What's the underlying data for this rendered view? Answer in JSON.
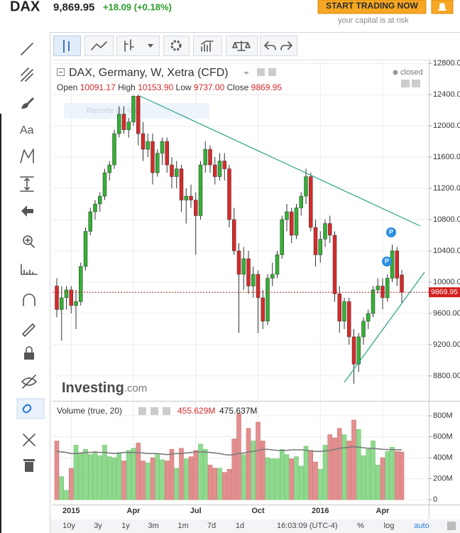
{
  "header": {
    "symbol": "DAX",
    "price": "9,869.95",
    "change": "+18.09 (+0.18%)",
    "button": "START TRADING NOW",
    "risk": "your capital is at risk"
  },
  "legend": {
    "title": "DAX, Germany, W, Xetra (CFD)",
    "status": "closed",
    "open_label": "Open",
    "open": "10091.17",
    "high_label": "High",
    "high": "10153.90",
    "low_label": "Low",
    "low": "9737.00",
    "close_label": "Close",
    "close": "9869.95",
    "tooltip": "Recorte de tela",
    "watermark": "Investing",
    "watermark_suffix": ".com"
  },
  "chart_data": [
    {
      "type": "candlestick",
      "categories": [
        null,
        null,
        null,
        "2015",
        null,
        null,
        null,
        null,
        null,
        null,
        null,
        null,
        null,
        null,
        null,
        null,
        "Apr",
        null,
        null,
        null,
        null,
        null,
        null,
        null,
        null,
        null,
        null,
        null,
        null,
        "Jul",
        null,
        null,
        null,
        null,
        null,
        null,
        null,
        null,
        null,
        null,
        null,
        null,
        "Oct",
        null,
        null,
        null,
        null,
        null,
        null,
        null,
        null,
        null,
        null,
        null,
        null,
        "2016",
        null,
        null,
        null,
        null,
        null,
        null,
        null,
        null,
        null,
        null,
        null,
        null,
        "Apr",
        null,
        null,
        null,
        null
      ],
      "open": [
        9950,
        9650,
        9800,
        9900,
        9700,
        9750,
        10200,
        10650,
        10900,
        11000,
        11100,
        11400,
        11500,
        11900,
        12150,
        11950,
        12050,
        12380,
        11900,
        11700,
        11800,
        11400,
        11650,
        11800,
        11500,
        11350,
        11450,
        11050,
        11100,
        11050,
        10850,
        11500,
        11700,
        11500,
        11350,
        11550,
        11450,
        10800,
        10400,
        10100,
        10300,
        9950,
        10100,
        9800,
        9500,
        10050,
        10100,
        10350,
        10800,
        10900,
        10600,
        10950,
        11100,
        11350,
        10700,
        10350,
        10550,
        10750,
        10600,
        9850,
        9500,
        9750,
        9300,
        8950,
        9300,
        9500,
        9600,
        9900,
        9950,
        9800,
        10050,
        10400,
        10091.17
      ],
      "high": [
        10050,
        9950,
        9950,
        9950,
        9900,
        10250,
        10700,
        10950,
        11050,
        11150,
        11450,
        11550,
        11950,
        12250,
        12250,
        12100,
        12390,
        12400,
        12050,
        11900,
        11900,
        11700,
        11850,
        11850,
        11600,
        11550,
        11500,
        11200,
        11250,
        11150,
        11550,
        11800,
        11750,
        11600,
        11650,
        11650,
        11500,
        10950,
        10500,
        10450,
        10400,
        10200,
        10150,
        9900,
        10100,
        10250,
        10400,
        10850,
        11000,
        10950,
        11000,
        11150,
        11450,
        11400,
        10800,
        10650,
        10800,
        10850,
        10650,
        9950,
        9800,
        9800,
        9400,
        9350,
        9550,
        9650,
        9950,
        10050,
        10050,
        10100,
        10480,
        10450,
        10153.9
      ],
      "low": [
        9550,
        9250,
        9650,
        9600,
        9400,
        9700,
        10150,
        10600,
        10800,
        10900,
        11050,
        11300,
        11450,
        11850,
        11900,
        11850,
        12000,
        11750,
        11550,
        11600,
        11250,
        11350,
        11500,
        11400,
        11200,
        11200,
        10900,
        10750,
        10950,
        10350,
        10800,
        11400,
        11400,
        11250,
        11300,
        11300,
        10700,
        10350,
        9350,
        9900,
        9850,
        9800,
        9350,
        9400,
        9450,
        9950,
        10050,
        10300,
        10650,
        10500,
        10550,
        10850,
        11000,
        10650,
        10200,
        10250,
        10450,
        10500,
        9750,
        9350,
        9400,
        9200,
        8700,
        8850,
        9200,
        9400,
        9550,
        9850,
        9650,
        9750,
        10000,
        9950,
        9737
      ],
      "close": [
        9650,
        9800,
        9900,
        9700,
        9750,
        10200,
        10650,
        10900,
        11000,
        11100,
        11400,
        11500,
        11900,
        12150,
        11950,
        12050,
        12380,
        11900,
        11700,
        11800,
        11400,
        11650,
        11800,
        11500,
        11350,
        11450,
        11050,
        11100,
        11050,
        10850,
        11500,
        11700,
        11500,
        11350,
        11550,
        11450,
        10800,
        10400,
        10100,
        10300,
        9950,
        10100,
        9800,
        9500,
        10050,
        10100,
        10350,
        10800,
        10900,
        10600,
        10950,
        11100,
        11350,
        10700,
        10350,
        10550,
        10750,
        10600,
        9850,
        9500,
        9750,
        9300,
        8950,
        9300,
        9500,
        9600,
        9900,
        9950,
        9800,
        10050,
        10400,
        10050,
        9869.95
      ],
      "up_color": "#35b035",
      "down_color": "#d62a2a",
      "ylim": [
        8490,
        12810
      ],
      "yticks": [
        {
          "value": 8800,
          "label": "8800.00"
        },
        {
          "value": 9200,
          "label": "9200.00"
        },
        {
          "value": 9600,
          "label": "9600.00"
        },
        {
          "value": 10000,
          "label": "10000.00"
        },
        {
          "value": 10400,
          "label": "10400.00"
        },
        {
          "value": 10800,
          "label": "10800.00"
        },
        {
          "value": 11200,
          "label": "11200.00"
        },
        {
          "value": 11600,
          "label": "11600.00"
        },
        {
          "value": 12000,
          "label": "12000.00"
        },
        {
          "value": 12400,
          "label": "12400.00"
        },
        {
          "value": 12800,
          "label": "12800.00"
        }
      ],
      "last_price": {
        "value": 9869.95,
        "label": "9869.95"
      },
      "grid": true
    },
    {
      "type": "bar",
      "title": "Volume (true, 20)",
      "values": [
        560,
        220,
        90,
        300,
        520,
        440,
        480,
        430,
        450,
        420,
        520,
        410,
        400,
        450,
        370,
        470,
        490,
        540,
        370,
        350,
        400,
        430,
        380,
        370,
        480,
        300,
        490,
        390,
        410,
        470,
        530,
        480,
        330,
        300,
        300,
        260,
        290,
        580,
        820,
        430,
        680,
        560,
        740,
        560,
        400,
        390,
        390,
        480,
        430,
        390,
        410,
        320,
        510,
        470,
        360,
        290,
        520,
        620,
        590,
        680,
        620,
        560,
        760,
        670,
        420,
        480,
        560,
        330,
        400,
        460,
        500,
        460,
        455.629
      ],
      "value_labels_last": "455.629M",
      "ma_values": [
        460,
        455,
        450,
        440,
        440,
        445,
        450,
        450,
        455,
        450,
        450,
        445,
        440,
        445,
        450,
        450,
        450,
        448,
        445,
        440,
        440,
        440,
        435,
        430,
        435,
        440,
        440,
        445,
        450,
        455,
        455,
        455,
        450,
        445,
        440,
        430,
        425,
        430,
        440,
        445,
        455,
        460,
        470,
        480,
        480,
        475,
        470,
        470,
        470,
        475,
        475,
        475,
        470,
        465,
        460,
        460,
        465,
        470,
        480,
        490,
        495,
        500,
        505,
        500,
        495,
        490,
        490,
        485,
        480,
        478,
        476,
        476,
        475.637
      ],
      "ma_label_last": "475.637M",
      "up_color": "#8fd98f",
      "down_color": "#e38e8e",
      "ma_color": "#7a7a7a",
      "ylim": [
        -47,
        936
      ],
      "yticks": [
        0,
        {
          "value": 200,
          "label": "200M"
        },
        {
          "value": 400,
          "label": "400M"
        },
        {
          "value": 600,
          "label": "600M"
        },
        {
          "value": 800,
          "label": "800M"
        }
      ],
      "grid": true
    }
  ],
  "footer": {
    "ranges": [
      "10y",
      "3y",
      "1y",
      "3m",
      "1m",
      "7d",
      "1d"
    ],
    "time": "16:03:09 (UTC-4)",
    "percent": "%",
    "log": "log",
    "auto": "auto"
  }
}
